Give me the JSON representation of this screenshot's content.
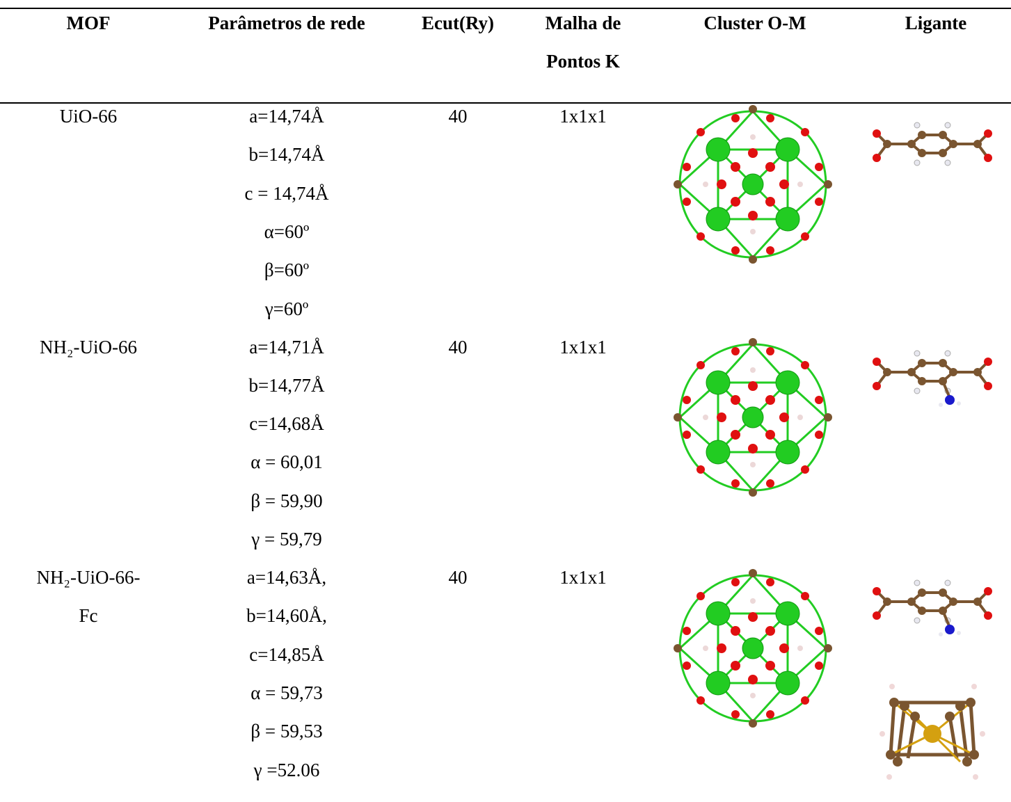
{
  "table": {
    "headers": [
      "MOF",
      "Parâmetros de rede",
      "Ecut(Ry)",
      "Malha de Pontos K",
      "Cluster O-M",
      "Ligante"
    ],
    "rows": [
      {
        "mof": [
          "UiO-66"
        ],
        "params": [
          "a=14,74Å",
          "b=14,74Å",
          "c = 14,74Å",
          "α=60º",
          "β=60º",
          "γ=60º"
        ],
        "ecut": "40",
        "kpoints": "1x1x1"
      },
      {
        "mof": [
          "NH₂-UiO-66"
        ],
        "params": [
          "a=14,71Å",
          "b=14,77Å",
          "c=14,68Å",
          "α = 60,01",
          "β = 59,90",
          "γ = 59,79"
        ],
        "ecut": "40",
        "kpoints": "1x1x1"
      },
      {
        "mof": [
          "NH₂-UiO-66-",
          "Fc"
        ],
        "params": [
          "a=14,63Å,",
          "b=14,60Å,",
          "c=14,85Å",
          "α = 59,73",
          "β = 59,53",
          "γ =52.06"
        ],
        "ecut": "40",
        "kpoints": "1x1x1"
      }
    ]
  }
}
